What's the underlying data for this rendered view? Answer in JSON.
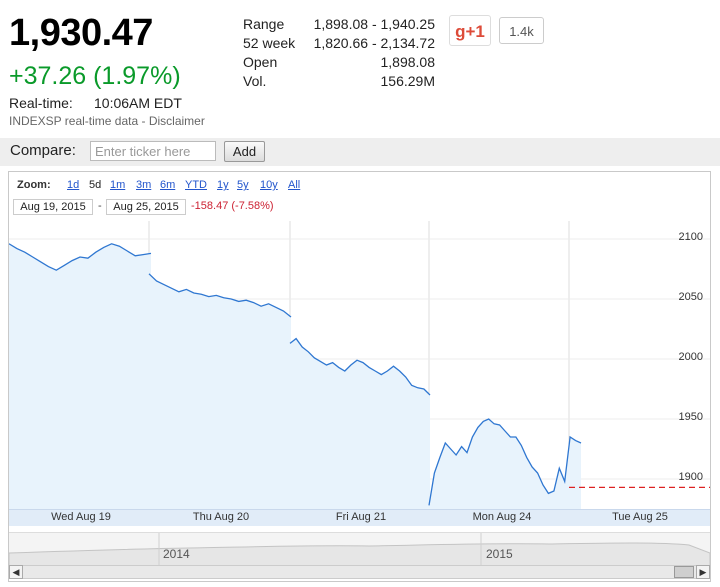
{
  "quote": {
    "price": "1,930.47",
    "change": "+37.26 (1.97%)",
    "realtime_label": "Real-time:",
    "realtime_time": "10:06AM EDT",
    "source": "INDEXSP real-time data - Disclaimer",
    "stats": [
      {
        "label": "Range",
        "value": "1,898.08 - 1,940.25"
      },
      {
        "label": "52 week",
        "value": "1,820.66 - 2,134.72"
      },
      {
        "label": "Open",
        "value": "1,898.08"
      },
      {
        "label": "Vol.",
        "value": "156.29M"
      }
    ],
    "colors": {
      "positive": "#0a9a2a",
      "negative": "#cc2233"
    }
  },
  "social": {
    "gplus_label": "g+1",
    "count": "1.4k"
  },
  "compare": {
    "label": "Compare:",
    "placeholder": "Enter ticker here",
    "button": "Add"
  },
  "chart": {
    "zoom_label": "Zoom:",
    "zoom_options": [
      "1d",
      "5d",
      "1m",
      "3m",
      "6m",
      "YTD",
      "1y",
      "5y",
      "10y",
      "All"
    ],
    "zoom_active": "5d",
    "date_from": "Aug 19, 2015",
    "date_to": "Aug 25, 2015",
    "date_sep": "-",
    "range_change": "-158.47 (-7.58%)",
    "navigator_years": [
      "2014",
      "2015"
    ]
  },
  "chart_data": {
    "type": "area",
    "title": "",
    "xlabel": "",
    "ylabel": "",
    "x_tick_labels": [
      "Wed Aug 19",
      "Thu Aug 20",
      "Fri Aug 21",
      "Mon Aug 24",
      "Tue Aug 25"
    ],
    "y_tick_labels": [
      "2100",
      "2050",
      "2000",
      "1950",
      "1900"
    ],
    "ylim": [
      1875,
      2115
    ],
    "grid": true,
    "series": [
      {
        "sessions": [
          {
            "day": "Wed Aug 19",
            "values": [
              2096,
              2092,
              2089,
              2085,
              2081,
              2077,
              2074,
              2078,
              2082,
              2085,
              2084,
              2089,
              2093,
              2096,
              2094,
              2090,
              2086,
              2087,
              2088
            ]
          },
          {
            "day": "Thu Aug 20",
            "values": [
              2071,
              2065,
              2062,
              2059,
              2056,
              2058,
              2055,
              2054,
              2052,
              2053,
              2051,
              2050,
              2048,
              2049,
              2047,
              2044,
              2046,
              2043,
              2040,
              2035
            ]
          },
          {
            "day": "Fri Aug 21",
            "values": [
              2013,
              2017,
              2010,
              2006,
              2001,
              1998,
              1995,
              1997,
              1993,
              1990,
              1995,
              1999,
              1997,
              1993,
              1990,
              1987,
              1990,
              1994,
              1990,
              1985,
              1978,
              1976,
              1975,
              1970
            ]
          },
          {
            "day": "Mon Aug 24",
            "values": [
              1878,
              1905,
              1918,
              1930,
              1925,
              1920,
              1927,
              1922,
              1935,
              1943,
              1948,
              1950,
              1946,
              1945,
              1940,
              1935,
              1935,
              1928,
              1918,
              1910,
              1905,
              1895,
              1888,
              1890,
              1909,
              1898,
              1935,
              1932,
              1930
            ]
          }
        ]
      }
    ],
    "reference_line": {
      "value": 1893,
      "style": "dashed",
      "color": "#dd2222"
    }
  }
}
